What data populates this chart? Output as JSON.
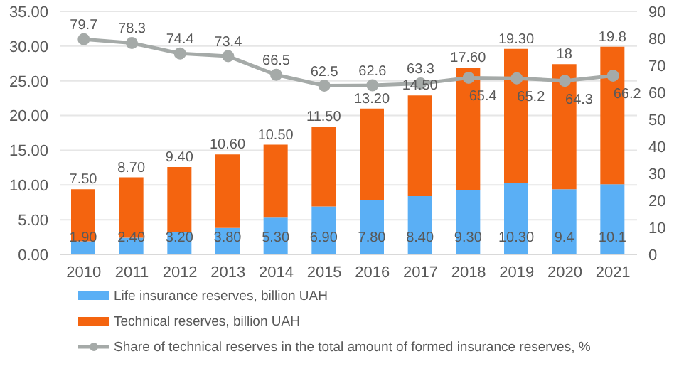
{
  "chart_data": {
    "type": "bar",
    "stacked": true,
    "categories": [
      "2010",
      "2011",
      "2012",
      "2013",
      "2014",
      "2015",
      "2016",
      "2017",
      "2018",
      "2019",
      "2020",
      "2021"
    ],
    "series": [
      {
        "name": "Life insurance reserves, billion UAH",
        "color": "#5aaff5",
        "values": [
          1.9,
          2.4,
          3.2,
          3.8,
          5.3,
          6.9,
          7.8,
          8.4,
          9.3,
          10.3,
          9.4,
          10.1
        ],
        "value_labels": [
          "1.90",
          "2.40",
          "3.20",
          "3.80",
          "5.30",
          "6.90",
          "7.80",
          "8.40",
          "9.30",
          "10.30",
          "9.4",
          "10.1"
        ]
      },
      {
        "name": "Technical reserves, billion UAH",
        "color": "#f4640f",
        "values": [
          7.5,
          8.7,
          9.4,
          10.6,
          10.5,
          11.5,
          13.2,
          14.5,
          17.6,
          19.3,
          18,
          19.8
        ],
        "value_labels": [
          "7.50",
          "8.70",
          "9.40",
          "10.60",
          "10.50",
          "11.50",
          "13.20",
          "14.50",
          "17.60",
          "19.30",
          "18",
          "19.8"
        ]
      },
      {
        "name": "Share of technical reserves in the total amount of formed insurance reserves, %",
        "type": "line",
        "axis": "y2",
        "color": "#a5aaa8",
        "marker": "circle",
        "values": [
          79.7,
          78.3,
          74.4,
          73.4,
          66.5,
          62.5,
          62.6,
          63.3,
          65.4,
          65.2,
          64.3,
          66.2
        ],
        "value_labels": [
          "79.7",
          "78.3",
          "74.4",
          "73.4",
          "66.5",
          "62.5",
          "62.6",
          "63.3",
          "65.4",
          "65.2",
          "64.3",
          "66.2"
        ]
      }
    ],
    "ylim": [
      0,
      35
    ],
    "yticks": [
      {
        "value": 0,
        "label": "0.00"
      },
      {
        "value": 5,
        "label": "5.00"
      },
      {
        "value": 10,
        "label": "10.00"
      },
      {
        "value": 15,
        "label": "15.00"
      },
      {
        "value": 20,
        "label": "20.00"
      },
      {
        "value": 25,
        "label": "25.00"
      },
      {
        "value": 30,
        "label": "30.00"
      },
      {
        "value": 35,
        "label": "35.00"
      }
    ],
    "y2lim": [
      0,
      90
    ],
    "y2ticks": [
      0,
      10,
      20,
      30,
      40,
      50,
      60,
      70,
      80,
      90
    ],
    "grid": "y",
    "legend": "bottom"
  }
}
